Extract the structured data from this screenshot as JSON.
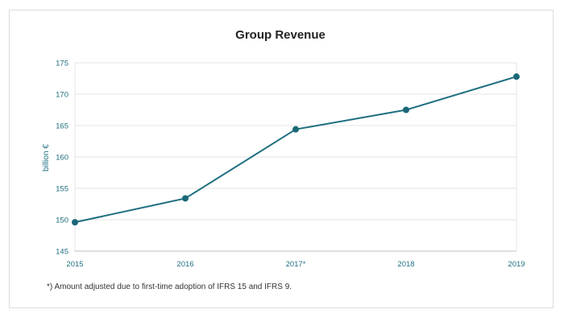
{
  "chart_data": {
    "type": "line",
    "title": "Group Revenue",
    "xlabel": "",
    "ylabel": "billion €",
    "categories": [
      "2015",
      "2016",
      "2017*",
      "2018",
      "2019"
    ],
    "series": [
      {
        "values": [
          149.6,
          153.4,
          164.4,
          167.5,
          172.8
        ]
      }
    ],
    "ylim": [
      145,
      175
    ],
    "yticks": [
      145,
      150,
      155,
      160,
      165,
      170,
      175
    ],
    "grid": true,
    "colors": {
      "line": "#1f6f80",
      "point": "#1a6878",
      "tick_text": "#1f6f80"
    }
  },
  "footnote": "*) Amount adjusted due to first-time adoption of IFRS 15 and IFRS 9."
}
